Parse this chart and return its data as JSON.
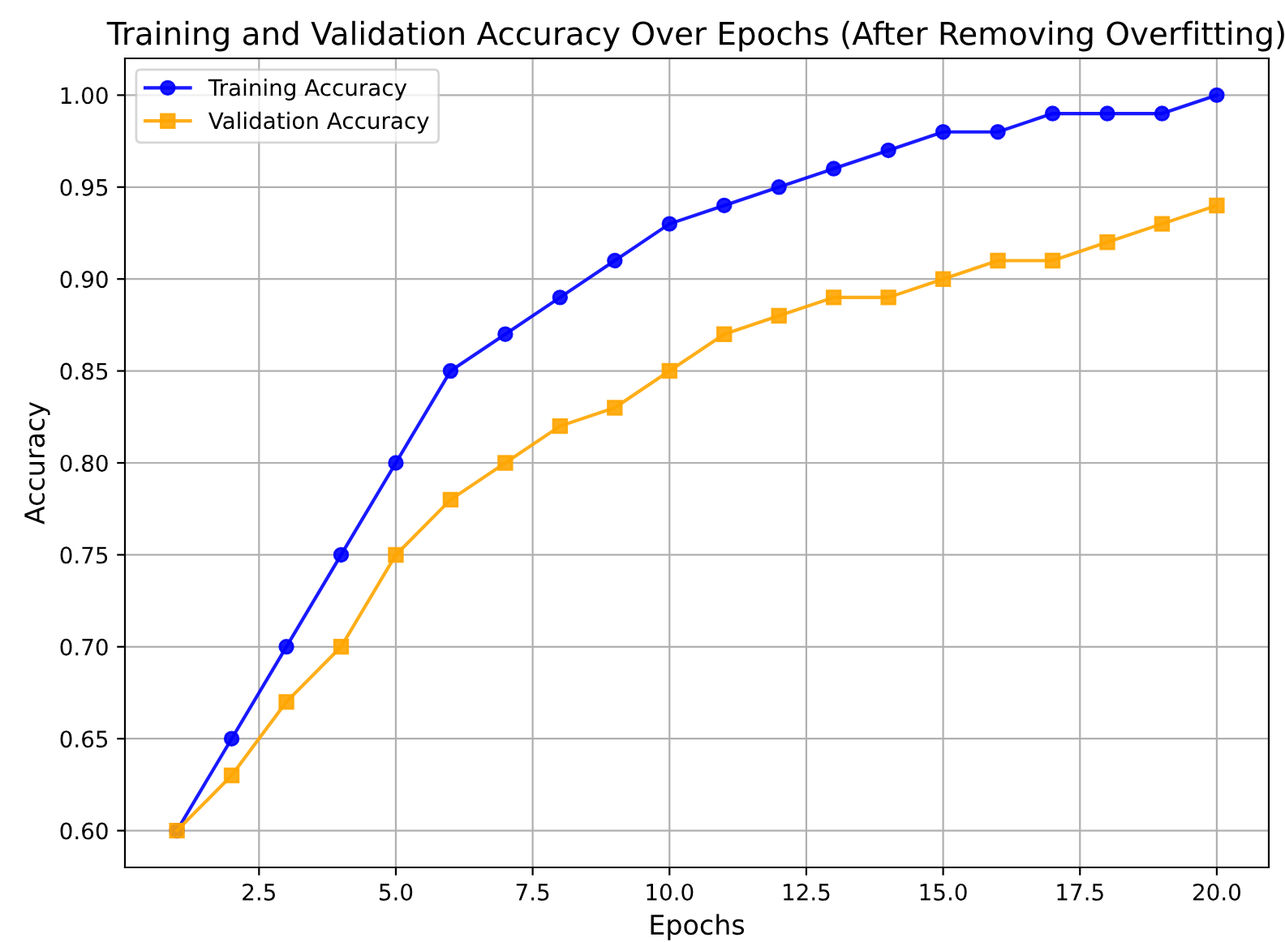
{
  "chart_data": {
    "type": "line",
    "title": "Training and Validation Accuracy Over Epochs (After Removing Overfitting)",
    "xlabel": "Epochs",
    "ylabel": "Accuracy",
    "x": [
      1,
      2,
      3,
      4,
      5,
      6,
      7,
      8,
      9,
      10,
      11,
      12,
      13,
      14,
      15,
      16,
      17,
      18,
      19,
      20
    ],
    "series": [
      {
        "name": "Training Accuracy",
        "color": "#0000ff",
        "marker": "circle",
        "values": [
          0.6,
          0.65,
          0.7,
          0.75,
          0.8,
          0.85,
          0.87,
          0.89,
          0.91,
          0.93,
          0.94,
          0.95,
          0.96,
          0.97,
          0.98,
          0.98,
          0.99,
          0.99,
          0.99,
          1.0
        ]
      },
      {
        "name": "Validation Accuracy",
        "color": "#ffa500",
        "marker": "square",
        "values": [
          0.6,
          0.63,
          0.67,
          0.7,
          0.75,
          0.78,
          0.8,
          0.82,
          0.83,
          0.85,
          0.87,
          0.88,
          0.89,
          0.89,
          0.9,
          0.91,
          0.91,
          0.92,
          0.93,
          0.94
        ]
      }
    ],
    "xlim": [
      0.05,
      20.95
    ],
    "ylim": [
      0.58,
      1.02
    ],
    "xticks": [
      {
        "value": 2.5,
        "label": "2.5"
      },
      {
        "value": 5,
        "label": "5.0"
      },
      {
        "value": 7.5,
        "label": "7.5"
      },
      {
        "value": 10,
        "label": "10.0"
      },
      {
        "value": 12.5,
        "label": "12.5"
      },
      {
        "value": 15,
        "label": "15.0"
      },
      {
        "value": 17.5,
        "label": "17.5"
      },
      {
        "value": 20,
        "label": "20.0"
      }
    ],
    "yticks": [
      {
        "value": 0.6,
        "label": "0.60"
      },
      {
        "value": 0.65,
        "label": "0.65"
      },
      {
        "value": 0.7,
        "label": "0.70"
      },
      {
        "value": 0.75,
        "label": "0.75"
      },
      {
        "value": 0.8,
        "label": "0.80"
      },
      {
        "value": 0.85,
        "label": "0.85"
      },
      {
        "value": 0.9,
        "label": "0.90"
      },
      {
        "value": 0.95,
        "label": "0.95"
      },
      {
        "value": 1.0,
        "label": "1.00"
      }
    ],
    "grid": true,
    "legend": "top left",
    "line_style": "solid"
  }
}
